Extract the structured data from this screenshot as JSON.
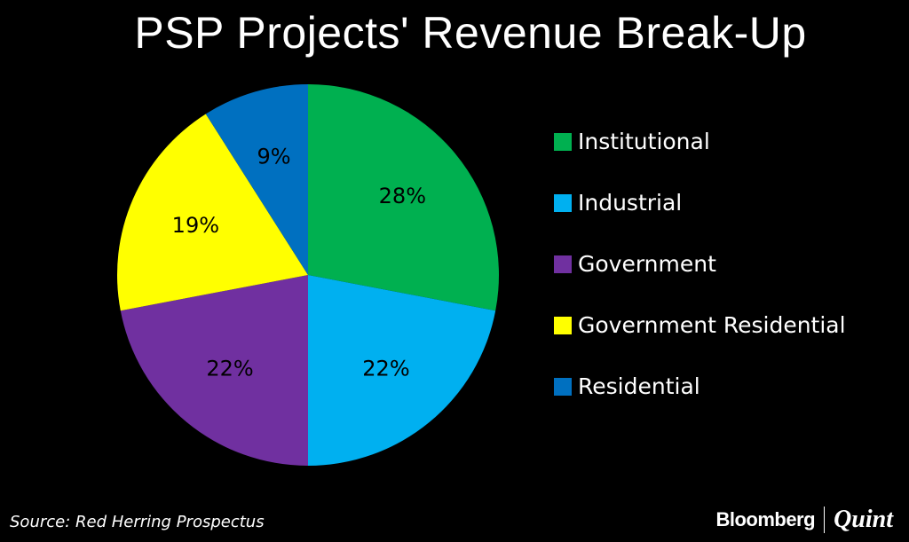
{
  "chart_data": {
    "type": "pie",
    "title": "PSP Projects' Revenue Break-Up",
    "categories": [
      "Institutional",
      "Industrial",
      "Government",
      "Government Residential",
      "Residential"
    ],
    "values": [
      28,
      22,
      22,
      19,
      9
    ],
    "value_labels": [
      "28%",
      "22%",
      "22%",
      "19%",
      "9%"
    ],
    "colors": [
      "#00B050",
      "#00B0F0",
      "#7030A0",
      "#FFFF00",
      "#0070C0"
    ],
    "start_angle": "12 o'clock",
    "direction": "clockwise",
    "legend_position": "right"
  },
  "footer": {
    "source": "Source: Red Herring Prospectus",
    "brand_bloomberg": "Bloomberg",
    "brand_quint": "Quint"
  }
}
